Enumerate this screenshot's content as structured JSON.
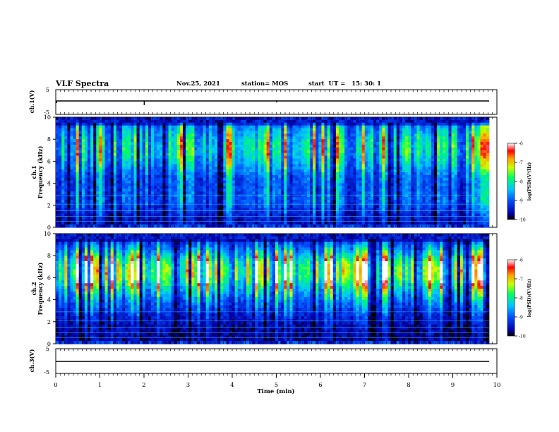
{
  "header": {
    "title": "VLF Spectra",
    "date": "Nov.25, 2021",
    "station": "station= MOS",
    "start_ut": "start  UT =   15: 30: 1"
  },
  "chart_data": [
    {
      "type": "line",
      "panel": "ch1-waveform",
      "ylabel": "ch.1(V)",
      "ylim": [
        -5,
        5
      ],
      "yticks": [
        "5",
        "-5"
      ],
      "xlim": [
        0,
        10
      ]
    },
    {
      "type": "heatmap",
      "panel": "ch1-spectrogram",
      "ylabel_line1": "ch.1",
      "ylabel_line2": "Frequency (kHz)",
      "ylim": [
        0,
        10
      ],
      "yticks": [
        "0",
        "2",
        "4",
        "6",
        "8",
        "10"
      ],
      "xlim": [
        0,
        10
      ],
      "colorbar": {
        "label": "log(PSD)(V²/Hz)",
        "range": [
          -10,
          -6
        ],
        "ticks": [
          "-6",
          "-7",
          "-8",
          "-9",
          "-10"
        ]
      }
    },
    {
      "type": "heatmap",
      "panel": "ch2-spectrogram",
      "ylabel_line1": "ch.2",
      "ylabel_line2": "Frequency (kHz)",
      "ylim": [
        0,
        10
      ],
      "yticks": [
        "0",
        "2",
        "4",
        "6",
        "8",
        "10"
      ],
      "xlim": [
        0,
        10
      ],
      "colorbar": {
        "label": "log(PSD)(V²/Hz)",
        "range": [
          -10,
          -6
        ],
        "ticks": [
          "-6",
          "-7",
          "-8",
          "-9",
          "-10"
        ]
      }
    },
    {
      "type": "line",
      "panel": "ch3-waveform",
      "ylabel": "ch.3(V)",
      "ylim": [
        -5,
        5
      ],
      "yticks": [
        "5",
        "-5"
      ],
      "xlim": [
        0,
        10
      ],
      "xlabel": "Time  (min)",
      "xticks": [
        "0",
        "1",
        "2",
        "3",
        "4",
        "5",
        "6",
        "7",
        "8",
        "9",
        "10"
      ]
    }
  ]
}
